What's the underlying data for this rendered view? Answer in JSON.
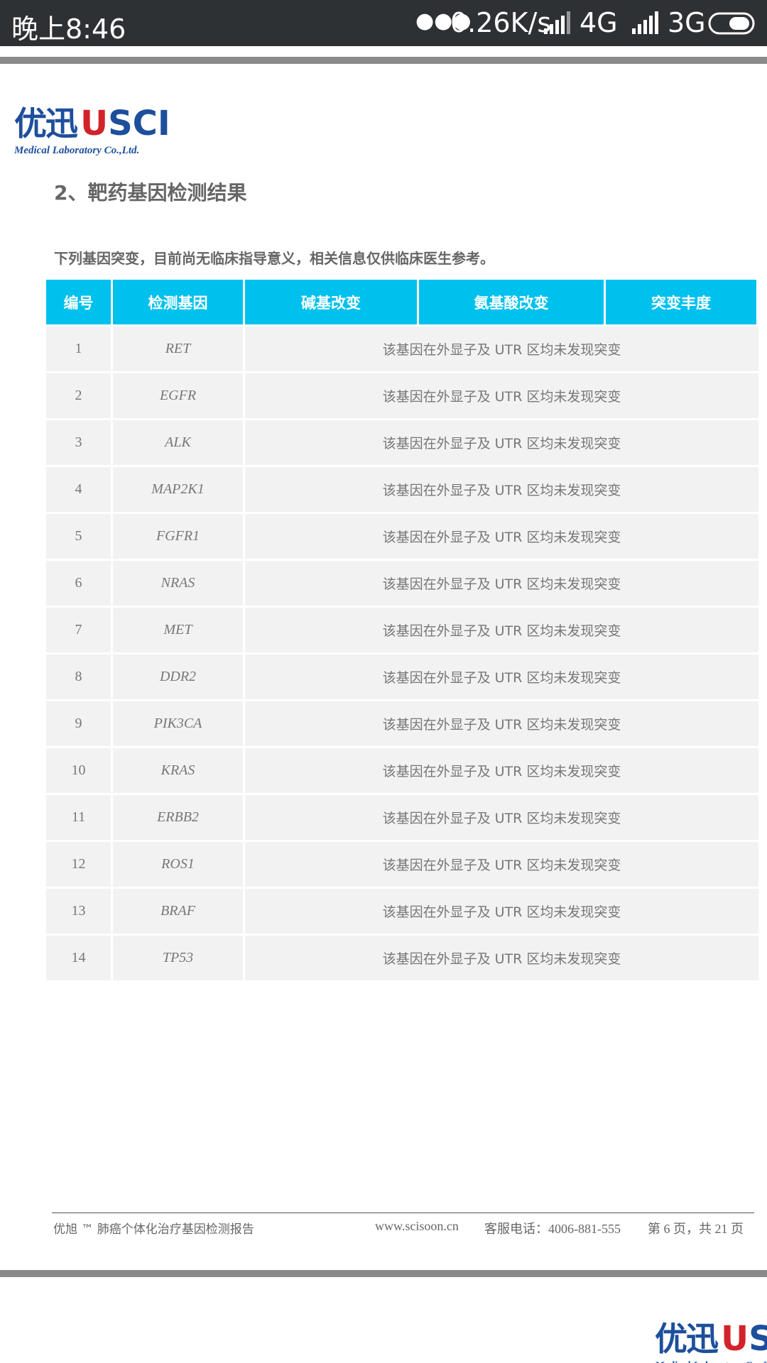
{
  "status_bar": {
    "time": "晚上8:46",
    "speed": "0.26K/s",
    "network1": "4G",
    "network2": "3G"
  },
  "logo": {
    "brand": "优迅",
    "name": "USCI",
    "subtitle": "Medical Laboratory Co.,Ltd."
  },
  "section": {
    "title": "2、靶药基因检测结果",
    "note": "下列基因突变，目前尚无临床指导意义，相关信息仅供临床医生参考。"
  },
  "table": {
    "headers": [
      "编号",
      "检测基因",
      "碱基改变",
      "氨基酸改变",
      "突变丰度"
    ],
    "rows": [
      [
        "1",
        "RET",
        "该基因在外显子及 UTR 区均未发现突变"
      ],
      [
        "2",
        "EGFR",
        "该基因在外显子及 UTR 区均未发现突变"
      ],
      [
        "3",
        "ALK",
        "该基因在外显子及 UTR 区均未发现突变"
      ],
      [
        "4",
        "MAP2K1",
        "该基因在外显子及 UTR 区均未发现突变"
      ],
      [
        "5",
        "FGFR1",
        "该基因在外显子及 UTR 区均未发现突变"
      ],
      [
        "6",
        "NRAS",
        "该基因在外显子及 UTR 区均未发现突变"
      ],
      [
        "7",
        "MET",
        "该基因在外显子及 UTR 区均未发现突变"
      ],
      [
        "8",
        "DDR2",
        "该基因在外显子及 UTR 区均未发现突变"
      ],
      [
        "9",
        "PIK3CA",
        "该基因在外显子及 UTR 区均未发现突变"
      ],
      [
        "10",
        "KRAS",
        "该基因在外显子及 UTR 区均未发现突变"
      ],
      [
        "11",
        "ERBB2",
        "该基因在外显子及 UTR 区均未发现突变"
      ],
      [
        "12",
        "ROS1",
        "该基因在外显子及 UTR 区均未发现突变"
      ],
      [
        "13",
        "BRAF",
        "该基因在外显子及 UTR 区均未发现突变"
      ],
      [
        "14",
        "TP53",
        "该基因在外显子及 UTR 区均未发现突变"
      ]
    ]
  },
  "footer": {
    "report": "优旭 ™ 肺癌个体化治疗基因检测报告",
    "website": "www.scisoon.cn",
    "phone": "客服电话：4006-881-555",
    "page": "第 6 页，共 21 页"
  }
}
